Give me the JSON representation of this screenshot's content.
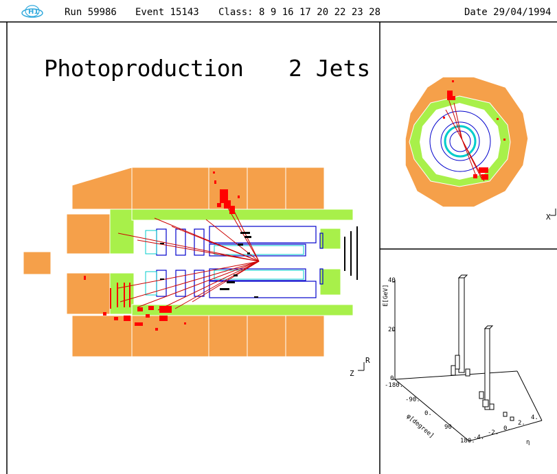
{
  "header": {
    "run": "Run 59986",
    "event": "Event 15143",
    "class": "Class: 8 9 16 17 20 22 23 28",
    "date": "Date 29/04/1994"
  },
  "main_view": {
    "title_left": "Photoproduction",
    "title_right": "2 Jets",
    "axis_z": "Z",
    "axis_r": "R"
  },
  "radial_view": {
    "axis_x": "X"
  },
  "lego_plot": {
    "y_label": "E[GeV]",
    "y_ticks": [
      "0",
      "20",
      "40"
    ],
    "phi_label": "φ[degree]",
    "phi_ticks": [
      "-180.",
      "-90.",
      "0.",
      "90.",
      "180."
    ],
    "eta_label": "η",
    "eta_ticks": [
      "-4.",
      "-2.",
      "0.",
      "2.",
      "4."
    ]
  },
  "colors": {
    "calorimeter": "#f5a04a",
    "em_calorimeter": "#a8f04a",
    "deposit": "#ff0000",
    "tracker": "#0000cc",
    "tracker_light": "#00cccc",
    "track": "#cc0000"
  }
}
